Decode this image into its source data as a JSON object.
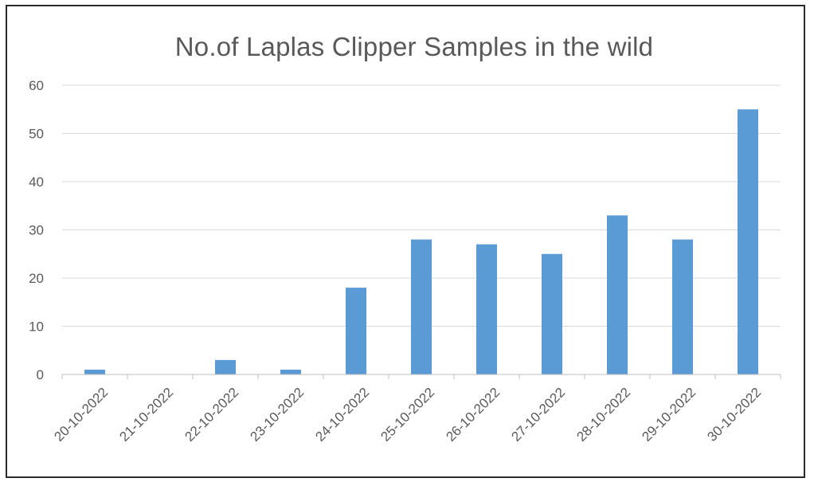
{
  "chart_data": {
    "type": "bar",
    "title": "No.of Laplas Clipper Samples in the wild",
    "xlabel": "",
    "ylabel": "",
    "categories": [
      "20-10-2022",
      "21-10-2022",
      "22-10-2022",
      "23-10-2022",
      "24-10-2022",
      "25-10-2022",
      "26-10-2022",
      "27-10-2022",
      "28-10-2022",
      "29-10-2022",
      "30-10-2022"
    ],
    "values": [
      1,
      0,
      3,
      1,
      18,
      28,
      27,
      25,
      33,
      28,
      55
    ],
    "ylim": [
      0,
      60
    ],
    "yticks": [
      "0",
      "10",
      "20",
      "30",
      "40",
      "50",
      "60"
    ],
    "grid": true,
    "legend": "none",
    "bar_color": "#5b9bd5",
    "grid_color": "#d9d9d9"
  }
}
